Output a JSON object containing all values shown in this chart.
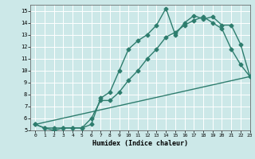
{
  "xlabel": "Humidex (Indice chaleur)",
  "line_color": "#2e7d6e",
  "bg_color": "#cce8e8",
  "grid_color": "#ffffff",
  "series": {
    "line1_x": [
      0,
      1,
      2,
      3,
      4,
      5,
      6,
      7,
      8,
      9,
      10,
      11,
      12,
      13,
      14,
      15,
      16,
      17,
      18,
      19,
      20,
      21,
      22,
      23
    ],
    "line1_y": [
      5.5,
      5.2,
      5.0,
      5.2,
      5.2,
      5.2,
      5.5,
      7.7,
      8.2,
      10.0,
      11.8,
      12.5,
      13.0,
      13.8,
      15.2,
      13.0,
      14.0,
      14.6,
      14.3,
      14.5,
      13.8,
      13.8,
      12.2,
      9.5
    ],
    "line2_x": [
      0,
      1,
      2,
      3,
      4,
      5,
      6,
      7,
      8,
      9,
      10,
      11,
      12,
      13,
      14,
      15,
      16,
      17,
      18,
      19,
      20,
      21,
      22,
      23
    ],
    "line2_y": [
      5.5,
      5.2,
      5.2,
      5.2,
      5.2,
      5.2,
      6.0,
      7.5,
      7.5,
      8.2,
      9.2,
      10.0,
      11.0,
      11.8,
      12.8,
      13.2,
      13.8,
      14.2,
      14.5,
      14.0,
      13.5,
      11.8,
      10.5,
      9.5
    ],
    "line3_x": [
      0,
      23
    ],
    "line3_y": [
      5.5,
      9.5
    ]
  },
  "xlim": [
    -0.5,
    23
  ],
  "ylim": [
    5,
    15.5
  ],
  "xticks": [
    0,
    1,
    2,
    3,
    4,
    5,
    6,
    7,
    8,
    9,
    10,
    11,
    12,
    13,
    14,
    15,
    16,
    17,
    18,
    19,
    20,
    21,
    22,
    23
  ],
  "yticks": [
    5,
    6,
    7,
    8,
    9,
    10,
    11,
    12,
    13,
    14,
    15
  ],
  "markersize": 2.5,
  "linewidth": 1.0
}
